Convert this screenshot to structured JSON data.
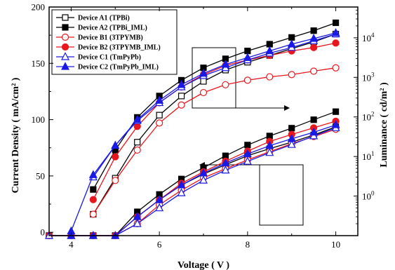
{
  "chart_data": {
    "type": "line",
    "xlabel": "Voltage ( V )",
    "ylabel": "Current Density ( mA/cm² )",
    "ylabel_right": "Luminance ( cd/m² )",
    "xlim": [
      3.5,
      10.5
    ],
    "ylim": [
      -3,
      200
    ],
    "ylim_right_log": [
      0.1,
      60000
    ],
    "x_ticks": [
      4,
      6,
      8,
      10
    ],
    "x_tick_labels": [
      "4",
      "6",
      "8",
      "10"
    ],
    "y_ticks": [
      0,
      50,
      100,
      150,
      200
    ],
    "y_tick_labels": [
      "0",
      "50",
      "100",
      "150",
      "200"
    ],
    "y_right_ticks": [
      1,
      10,
      100,
      1000,
      10000
    ],
    "y_right_tick_labels": [
      {
        "base": "10",
        "exp": "0"
      },
      {
        "base": "10",
        "exp": "1"
      },
      {
        "base": "10",
        "exp": "2"
      },
      {
        "base": "10",
        "exp": "3"
      },
      {
        "base": "10",
        "exp": "4"
      }
    ],
    "legend_position": "top-left",
    "grid": false,
    "series": [
      {
        "name": "Device A1 (TPBi)",
        "color": "#000000",
        "marker": "square",
        "filled": false,
        "current_density": {
          "x": [
            3.5,
            4,
            4.5,
            5,
            5.5,
            6,
            6.5,
            7,
            7.5,
            8,
            8.5,
            9,
            9.5,
            10
          ],
          "y": [
            0,
            0,
            0,
            0.1,
            0.3,
            0.8,
            1.9,
            3.6,
            6.2,
            10.5,
            15.8,
            23,
            35,
            56
          ]
        },
        "luminance": {
          "x": [
            4.5,
            5,
            5.5,
            6,
            6.5,
            7,
            7.5,
            8,
            8.5,
            9,
            9.5,
            10
          ],
          "y": [
            16,
            48,
            80,
            104,
            121,
            134,
            144,
            151,
            157,
            163,
            169,
            176
          ]
        }
      },
      {
        "name": "Device A2 (TPBi_IML)",
        "color": "#000000",
        "marker": "square",
        "filled": true,
        "current_density": {
          "x": [
            3.5,
            4,
            4.5,
            5,
            5.5,
            6,
            6.5,
            7,
            7.5,
            8,
            8.5,
            9,
            9.5,
            10
          ],
          "y": [
            0,
            0,
            0,
            0.1,
            0.4,
            1.1,
            2.7,
            5.2,
            10.4,
            19.5,
            33,
            52,
            85,
            136
          ]
        },
        "luminance": {
          "x": [
            4.5,
            5,
            5.5,
            6,
            6.5,
            7,
            7.5,
            8,
            8.5,
            9,
            9.5,
            10
          ],
          "y": [
            38,
            73,
            102,
            121,
            135,
            146,
            154,
            161,
            167,
            173,
            179,
            186
          ]
        }
      },
      {
        "name": "Device B1 (3TPYMB)",
        "color": "#e8161d",
        "marker": "circle",
        "filled": false,
        "current_density": {
          "x": [
            3.5,
            4,
            4.5,
            5,
            5.5,
            6,
            6.5,
            7,
            7.5,
            8,
            8.5,
            9,
            9.5,
            10
          ],
          "y": [
            0,
            0,
            0,
            0.1,
            0.2,
            0.6,
            1.4,
            2.9,
            4.9,
            8.2,
            13.3,
            21,
            32,
            49
          ]
        },
        "luminance": {
          "x": [
            4.5,
            5,
            5.5,
            6,
            6.5,
            7,
            7.5,
            8,
            8.5,
            9,
            9.5,
            10
          ],
          "y": [
            16,
            46,
            73,
            97,
            113,
            124,
            131,
            135,
            138,
            140,
            143,
            146
          ]
        }
      },
      {
        "name": "Device B2 (3TPYMB_IML)",
        "color": "#e8161d",
        "marker": "circle",
        "filled": true,
        "current_density": {
          "x": [
            3.5,
            4,
            4.5,
            5,
            5.5,
            6,
            6.5,
            7,
            7.5,
            8,
            8.5,
            9,
            9.5,
            10
          ],
          "y": [
            0,
            0,
            0,
            0.1,
            0.3,
            0.8,
            2.1,
            4.1,
            7.6,
            13.6,
            24,
            36,
            53,
            78
          ]
        },
        "luminance": {
          "x": [
            4.5,
            5,
            5.5,
            6,
            6.5,
            7,
            7.5,
            8,
            8.5,
            9,
            9.5,
            10
          ],
          "y": [
            29,
            67,
            94,
            115,
            129,
            140,
            148,
            153,
            157,
            161,
            164,
            168
          ]
        }
      },
      {
        "name": "Device C1 (TmPyPb)",
        "color": "#1a1ae6",
        "marker": "triangle",
        "filled": false,
        "current_density": {
          "x": [
            3.5,
            4,
            4.5,
            5,
            5.5,
            6,
            6.5,
            7,
            7.5,
            8,
            8.5,
            9,
            9.5,
            10
          ],
          "y": [
            0,
            0,
            0,
            0.1,
            0.2,
            0.5,
            1.2,
            2.5,
            4.5,
            7.5,
            12.5,
            20,
            33,
            53
          ]
        },
        "luminance": {
          "x": [
            4.5,
            5,
            5.5,
            6,
            6.5,
            7,
            7.5,
            8,
            8.5,
            9,
            9.5,
            10
          ],
          "y": [
            49,
            77,
            99,
            115,
            129,
            139,
            146,
            153,
            159,
            164,
            170,
            176
          ]
        }
      },
      {
        "name": "Device C2 (TmPyPb_IML)",
        "color": "#1a1ae6",
        "marker": "triangle",
        "filled": true,
        "current_density": {
          "x": [
            4,
            4.5,
            5,
            5.5,
            6,
            6.5,
            7,
            7.5,
            8,
            8.5,
            9,
            9.5,
            10
          ],
          "y": [
            0,
            0,
            0.1,
            0.3,
            0.8,
            1.9,
            3.8,
            6.8,
            11.6,
            18.7,
            28,
            41,
            63
          ]
        },
        "luminance": {
          "x": [
            4,
            4.5,
            5,
            5.5,
            6,
            6.5,
            7,
            7.5,
            8,
            8.5,
            9,
            9.5,
            10
          ],
          "y": [
            1,
            51,
            77,
            100,
            117,
            131,
            141,
            149,
            155,
            161,
            167,
            172,
            177
          ]
        }
      }
    ]
  }
}
